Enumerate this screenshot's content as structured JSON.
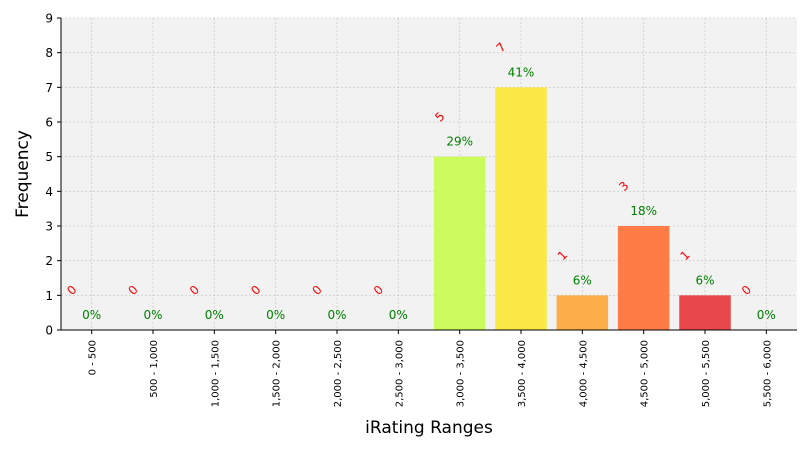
{
  "chart_data": {
    "type": "bar",
    "xlabel": "iRating Ranges",
    "ylabel": "Frequency",
    "ylim": [
      0,
      9
    ],
    "yticks": [
      0,
      1,
      2,
      3,
      4,
      5,
      6,
      7,
      8,
      9
    ],
    "grid": true,
    "categories": [
      "0 - 500",
      "500 - 1,000",
      "1,000 - 1,500",
      "1,500 - 2,000",
      "2,000 - 2,500",
      "2,500 - 3,000",
      "3,000 - 3,500",
      "3,500 - 4,000",
      "4,000 - 4,500",
      "4,500 - 5,000",
      "5,000 - 5,500",
      "5,500 - 6,000"
    ],
    "values": [
      0,
      0,
      0,
      0,
      0,
      0,
      5,
      7,
      1,
      3,
      1,
      0
    ],
    "count_labels": [
      "0",
      "0",
      "0",
      "0",
      "0",
      "0",
      "5",
      "7",
      "1",
      "3",
      "1",
      "0"
    ],
    "percent_labels": [
      "0%",
      "0%",
      "0%",
      "0%",
      "0%",
      "0%",
      "29%",
      "41%",
      "6%",
      "18%",
      "6%",
      "0%"
    ],
    "bar_colors": [
      "#c8f25a",
      "#c8f25a",
      "#c8f25a",
      "#c8f25a",
      "#c8f25a",
      "#c8f25a",
      "#ccfb5d",
      "#fae846",
      "#fdae4a",
      "#ff7c47",
      "#e8484a",
      "#e8484a"
    ],
    "count_label_color": "#ff0000",
    "percent_label_color": "#008000",
    "plot_background": "#f2f2f2",
    "grid_color": "#cccccc"
  }
}
